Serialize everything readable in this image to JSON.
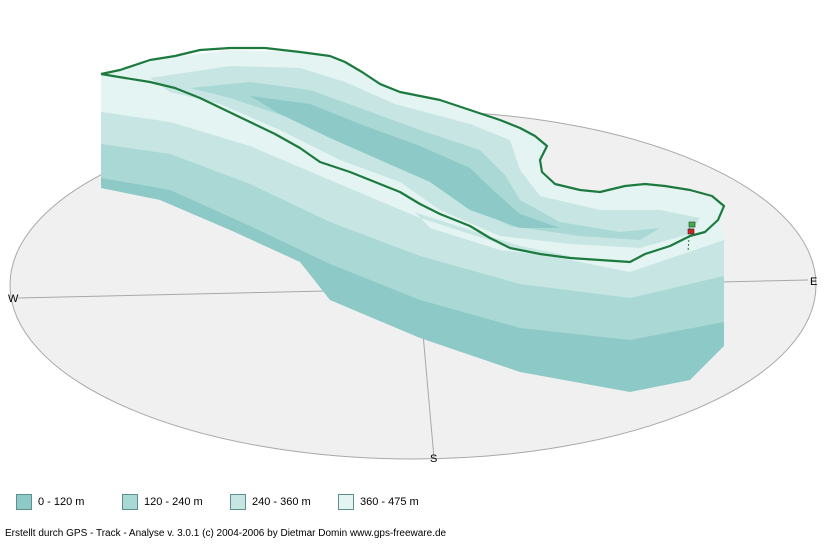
{
  "chart_data": {
    "type": "area",
    "title": "",
    "compass": {
      "west": "W",
      "east": "E",
      "south": "S"
    },
    "elevation_bands": [
      {
        "label": "0 - 120 m",
        "min": 0,
        "max": 120,
        "color": "#8cc9c7"
      },
      {
        "label": "120 - 240 m",
        "min": 120,
        "max": 240,
        "color": "#aad8d5"
      },
      {
        "label": "240 - 360 m",
        "min": 240,
        "max": 360,
        "color": "#c7e6e3"
      },
      {
        "label": "360 - 475 m",
        "min": 360,
        "max": 475,
        "color": "#e4f4f2"
      }
    ],
    "track_color": "#1c7a3f",
    "start_marker_color": "#3cb043",
    "end_marker_color": "#cc2222"
  },
  "footer": {
    "text": "Erstellt durch  GPS - Track - Analyse   v. 3.0.1   (c) 2004-2006 by Dietmar Domin  www.gps-freeware.de"
  }
}
